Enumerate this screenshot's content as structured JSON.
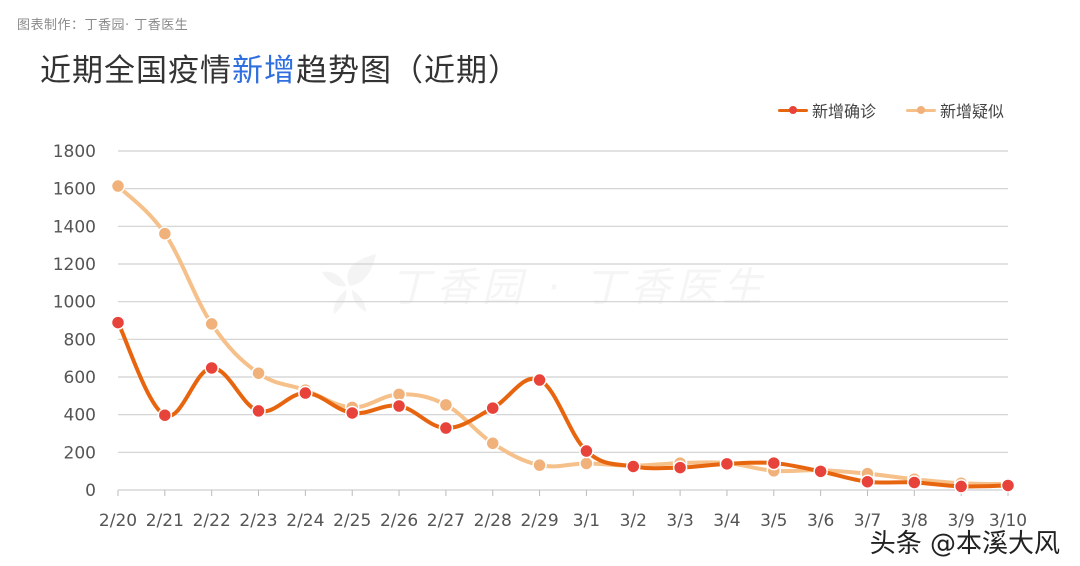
{
  "header": {
    "credit": "图表制作：丁香园·  丁香医生",
    "title_prefix": "近期全国疫情",
    "title_highlight": "新增",
    "title_suffix": "趋势图（近期）"
  },
  "watermark": {
    "text": "丁香园 · 丁香医生"
  },
  "footer": {
    "source_mark": "头条 @本溪大风"
  },
  "colors": {
    "confirmed": "#e8650f",
    "confirmed_marker": "#e8433a",
    "suspected": "#f5c089",
    "suspected_marker": "#f0b27a",
    "grid": "#d0d0d0",
    "title_highlight": "#2f6fe0"
  },
  "chart_data": {
    "type": "line",
    "title": "近期全国疫情新增趋势图（近期）",
    "xlabel": "",
    "ylabel": "",
    "ylim": [
      0,
      1800
    ],
    "yticks": [
      0,
      200,
      400,
      600,
      800,
      1000,
      1200,
      1400,
      1600,
      1800
    ],
    "grid": true,
    "legend_position": "top-right",
    "categories": [
      "2/20",
      "2/21",
      "2/22",
      "2/23",
      "2/24",
      "2/25",
      "2/26",
      "2/27",
      "2/28",
      "2/29",
      "3/1",
      "3/2",
      "3/3",
      "3/4",
      "3/5",
      "3/6",
      "3/7",
      "3/8",
      "3/9",
      "3/10"
    ],
    "series": [
      {
        "name": "新增确诊",
        "values": [
          889,
          397,
          648,
          420,
          515,
          409,
          446,
          329,
          435,
          584,
          207,
          125,
          119,
          139,
          143,
          99,
          44,
          40,
          19,
          24
        ]
      },
      {
        "name": "新增疑似",
        "values": [
          1614,
          1361,
          882,
          620,
          530,
          439,
          508,
          452,
          248,
          132,
          141,
          129,
          143,
          143,
          102,
          105,
          87,
          57,
          36,
          31
        ]
      }
    ]
  }
}
